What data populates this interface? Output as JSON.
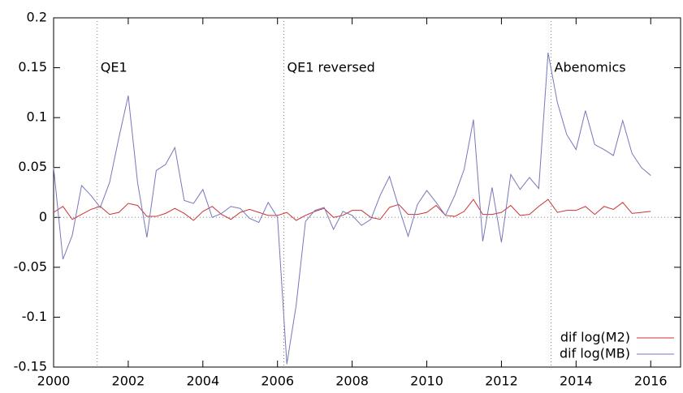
{
  "chart_data": {
    "type": "line",
    "x": [
      2000,
      2000.25,
      2000.5,
      2000.75,
      2001,
      2001.25,
      2001.5,
      2001.75,
      2002,
      2002.25,
      2002.5,
      2002.75,
      2003,
      2003.25,
      2003.5,
      2003.75,
      2004,
      2004.25,
      2004.5,
      2004.75,
      2005,
      2005.25,
      2005.5,
      2005.75,
      2006,
      2006.25,
      2006.5,
      2006.75,
      2007,
      2007.25,
      2007.5,
      2007.75,
      2008,
      2008.25,
      2008.5,
      2008.75,
      2009,
      2009.25,
      2009.5,
      2009.75,
      2010,
      2010.25,
      2010.5,
      2010.75,
      2011,
      2011.25,
      2011.5,
      2011.75,
      2012,
      2012.25,
      2012.5,
      2012.75,
      2013,
      2013.25,
      2013.5,
      2013.75,
      2014,
      2014.25,
      2014.5,
      2014.75,
      2015,
      2015.25,
      2015.5,
      2015.75,
      2016
    ],
    "series": [
      {
        "name": "dif log(M2)",
        "color": "#cc3333",
        "values": [
          0.005,
          0.011,
          -0.002,
          0.003,
          0.008,
          0.011,
          0.003,
          0.005,
          0.014,
          0.012,
          0.001,
          0.001,
          0.004,
          0.009,
          0.004,
          -0.003,
          0.006,
          0.011,
          0.003,
          -0.002,
          0.005,
          0.008,
          0.005,
          0.002,
          0.002,
          0.005,
          -0.003,
          0.002,
          0.006,
          0.009,
          0.0,
          0.002,
          0.007,
          0.007,
          0.0,
          -0.002,
          0.01,
          0.013,
          0.003,
          0.003,
          0.005,
          0.012,
          0.002,
          0.001,
          0.006,
          0.018,
          0.003,
          0.003,
          0.005,
          0.012,
          0.002,
          0.003,
          0.011,
          0.018,
          0.005,
          0.007,
          0.007,
          0.011,
          0.003,
          0.011,
          0.008,
          0.015,
          0.004,
          0.005,
          0.006
        ]
      },
      {
        "name": "dif log(MB)",
        "color": "#7777bb",
        "values": [
          0.05,
          -0.042,
          -0.018,
          0.032,
          0.022,
          0.01,
          0.035,
          0.08,
          0.122,
          0.035,
          -0.02,
          0.047,
          0.053,
          0.07,
          0.017,
          0.014,
          0.028,
          0.0,
          0.004,
          0.011,
          0.009,
          -0.001,
          -0.005,
          0.015,
          0.0,
          -0.147,
          -0.088,
          -0.004,
          0.007,
          0.01,
          -0.012,
          0.006,
          0.002,
          -0.008,
          -0.002,
          0.022,
          0.041,
          0.01,
          -0.019,
          0.013,
          0.027,
          0.015,
          0.002,
          0.022,
          0.048,
          0.098,
          -0.024,
          0.03,
          -0.025,
          0.043,
          0.028,
          0.04,
          0.029,
          0.165,
          0.115,
          0.083,
          0.068,
          0.107,
          0.073,
          0.068,
          0.062,
          0.097,
          0.064,
          0.05,
          0.042
        ]
      }
    ],
    "vlines": [
      {
        "x": 2001.17,
        "label": "QE1"
      },
      {
        "x": 2006.17,
        "label": "QE1 reversed"
      },
      {
        "x": 2013.33,
        "label": "Abenomics"
      }
    ],
    "xlim": [
      2000,
      2016.8
    ],
    "xticks": [
      2000,
      2002,
      2004,
      2006,
      2008,
      2010,
      2012,
      2014,
      2016
    ],
    "ylim": [
      -0.15,
      0.2
    ],
    "yticks": [
      -0.15,
      -0.1,
      -0.05,
      0,
      0.05,
      0.1,
      0.15,
      0.2
    ],
    "zeroaxis": true,
    "legend": "bottom-right"
  }
}
